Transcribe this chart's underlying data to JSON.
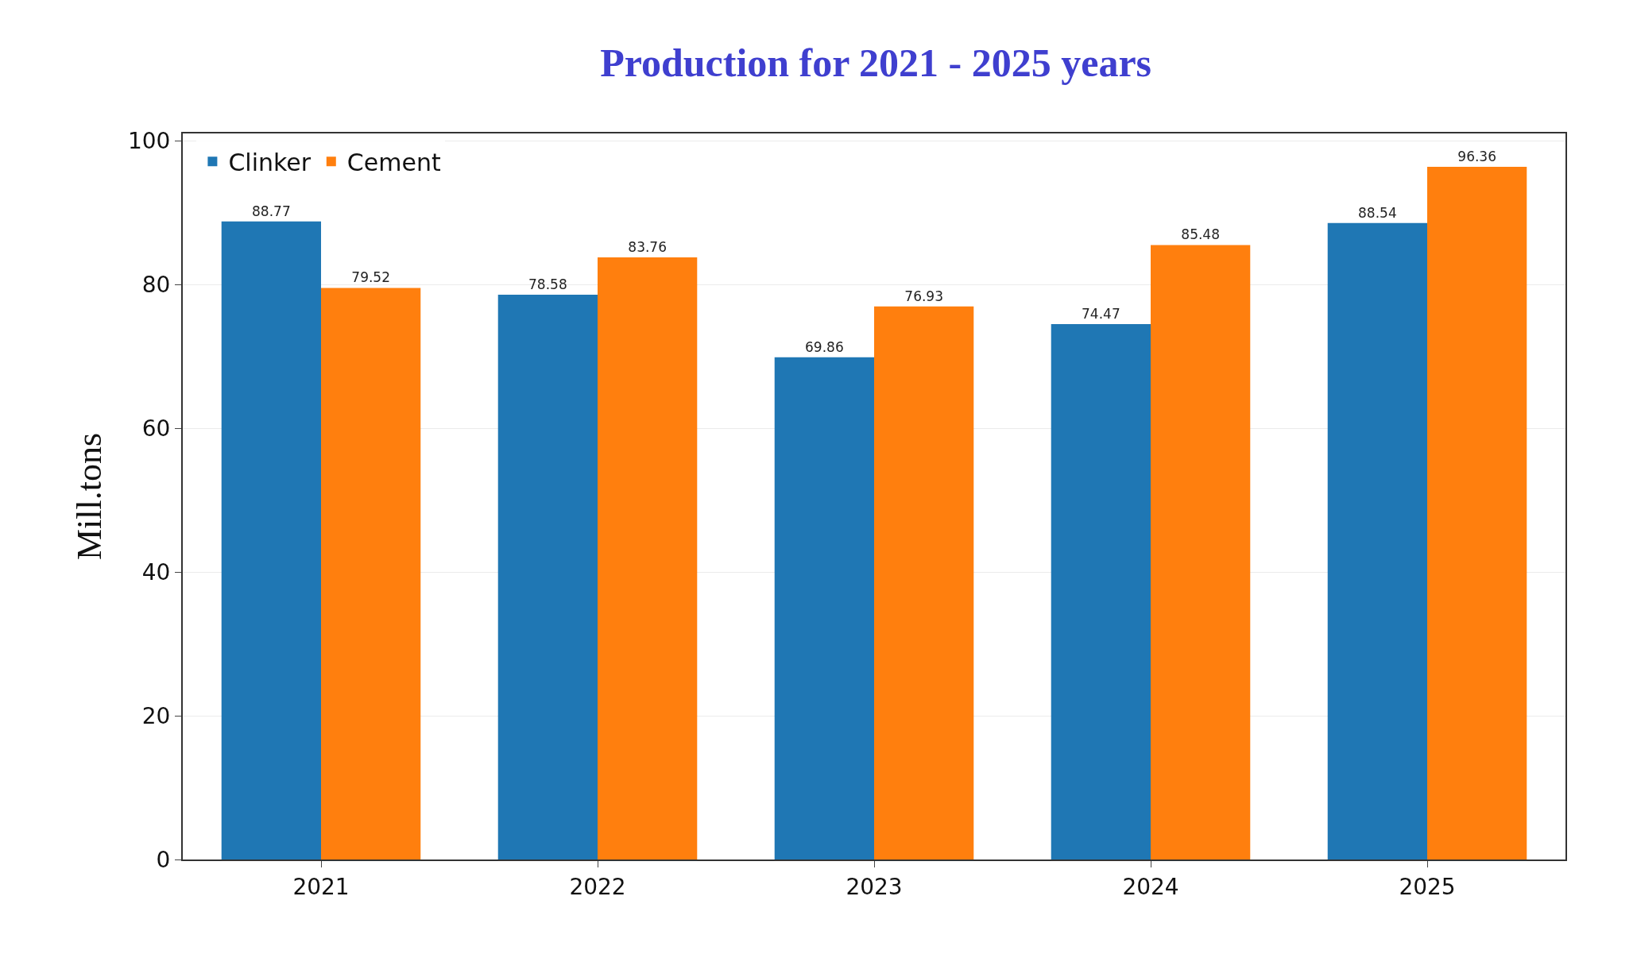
{
  "chart_data": {
    "type": "bar",
    "title": "Production for 2021 - 2025 years",
    "ylabel": "Mill.tons",
    "categories": [
      "2021",
      "2022",
      "2023",
      "2024",
      "2025"
    ],
    "series": [
      {
        "name": "Clinker",
        "color": "#1f77b4",
        "values": [
          88.77,
          78.58,
          69.86,
          74.47,
          88.54
        ]
      },
      {
        "name": "Cement",
        "color": "#ff7f0e",
        "values": [
          79.52,
          83.76,
          76.93,
          85.48,
          96.36
        ]
      }
    ],
    "ylim": [
      0,
      101
    ],
    "yticks": [
      0,
      20,
      40,
      60,
      80,
      100
    ],
    "grid": "y",
    "legend": "top left",
    "data_labels": true
  }
}
